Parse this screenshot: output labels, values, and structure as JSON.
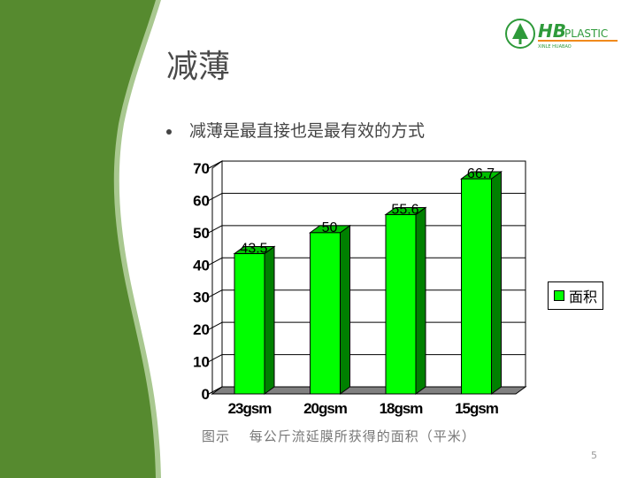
{
  "slide": {
    "title": "减薄",
    "bullet": "减薄是最直接也是最有效的方式",
    "caption": "图示　 每公斤流延膜所获得的面积（平米）",
    "page_number": "5",
    "logo_text": "HB PLASTIC XINLE HUABAO GREEN TREE",
    "colors": {
      "sidebar": "#568a2f",
      "sidebar_edge": "#a9c890",
      "bar_front": "#00ff00",
      "bar_side": "#008000"
    }
  },
  "chart_data": {
    "type": "bar",
    "style": "3d-column",
    "categories": [
      "23gsm",
      "20gsm",
      "18gsm",
      "15gsm"
    ],
    "series": [
      {
        "name": "面积",
        "values": [
          43.5,
          50,
          55.6,
          66.7
        ]
      }
    ],
    "data_labels": [
      "43.5",
      "50",
      "55.6",
      "66.7"
    ],
    "ylim": [
      0,
      70
    ],
    "yticks": [
      "0",
      "10",
      "20",
      "30",
      "40",
      "50",
      "60",
      "70"
    ],
    "grid": true,
    "legend": "right"
  }
}
